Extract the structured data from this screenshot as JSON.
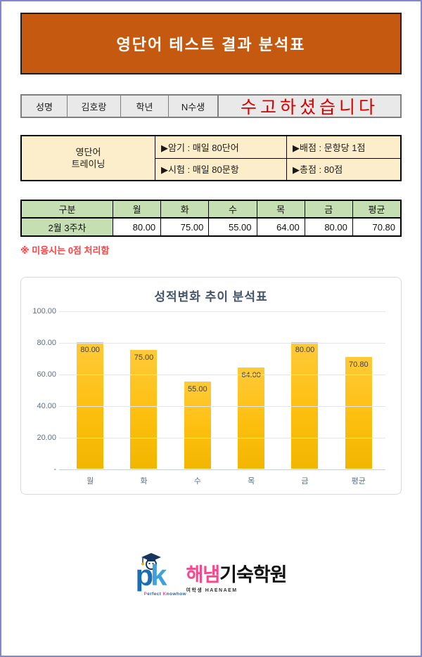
{
  "page": {
    "banner_title": "영단어 테스트 결과 분석표"
  },
  "student": {
    "name_label": "성명",
    "name_value": "김호랑",
    "grade_label": "학년",
    "grade_value": "N수생",
    "message": "수고하셨습니다"
  },
  "training": {
    "title_line1": "영단어",
    "title_line2": "트레이닝",
    "memorize": "▶암기 : 매일 80단어",
    "scoring": "▶배점 : 문항당 1점",
    "test": "▶시험 : 매일 80문항",
    "total": "▶총점 : 80점"
  },
  "score_table": {
    "headers": [
      "구분",
      "월",
      "화",
      "수",
      "목",
      "금",
      "평균"
    ],
    "row_label": "2월 3주차",
    "values": [
      "80.00",
      "75.00",
      "55.00",
      "64.00",
      "80.00",
      "70.80"
    ]
  },
  "note": "※ 미응시는 0점 처리함",
  "chart_data": {
    "type": "bar",
    "title": "성적변화 추이 분석표",
    "categories": [
      "월",
      "화",
      "수",
      "목",
      "금",
      "평균"
    ],
    "values": [
      80,
      75,
      55,
      64,
      80,
      70.8
    ],
    "value_labels": [
      "80.00",
      "75.00",
      "55.00",
      "64.00",
      "80.00",
      "70.80"
    ],
    "ylim": [
      0,
      100
    ],
    "yticks": [
      100,
      80,
      60,
      40,
      20,
      0
    ],
    "ytick_labels": [
      "100.00",
      "80.00",
      "60.00",
      "40.00",
      "20.00",
      "-"
    ],
    "grid": true,
    "legend": "none",
    "bar_color": "#FFC21E",
    "label_color": "#3F3F3F",
    "axis_color": "#5B6E86"
  },
  "logo": {
    "p": "p",
    "k": "k",
    "tagline_p1": "P",
    "tagline_p2": "erfect ",
    "tagline_k1": "K",
    "tagline_k2": "nowhow",
    "brand_pink": "해냄",
    "brand_black": "기숙학원",
    "brand_sub": "여학생 HAENAEM"
  },
  "colors": {
    "banner_bg": "#C4590F",
    "page_border": "#8486D0",
    "info_bg": "#E9E9E9",
    "training_bg": "#FCEECB",
    "table_green": "#C6DFB2",
    "message_red": "#D70000",
    "note_red": "#FF4040",
    "chart_title_navy": "#44546A",
    "bar_yellow": "#FFC21E",
    "logo_blue_p": "#1B6EB4",
    "logo_blue_k": "#3FA0DA",
    "logo_pink": "#F8478D"
  }
}
